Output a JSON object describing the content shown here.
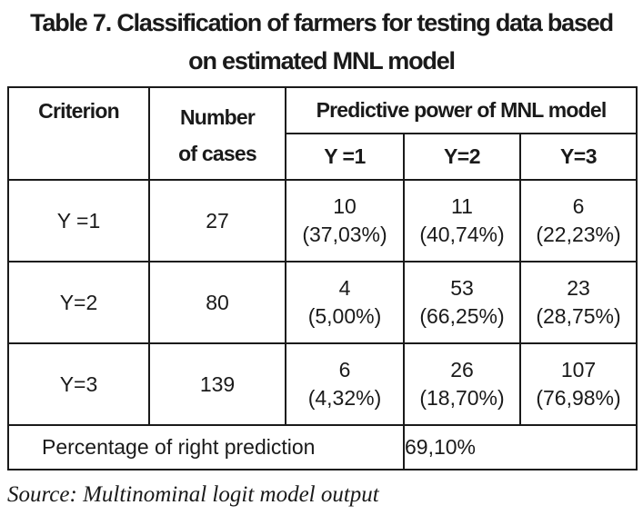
{
  "title": {
    "line1": "Table 7. Classification of farmers for testing data based",
    "line2": "on estimated MNL model"
  },
  "table": {
    "header": {
      "criterion": "Criterion",
      "number_of_cases_line1": "Number",
      "number_of_cases_line2": "of cases",
      "predictive_power": "Predictive power of MNL model",
      "sub_columns": [
        "Y =1",
        "Y=2",
        "Y=3"
      ]
    },
    "rows": [
      {
        "criterion": "Y =1",
        "cases": "27",
        "cells": [
          {
            "count": "10",
            "pct": "(37,03%)"
          },
          {
            "count": "11",
            "pct": "(40,74%)"
          },
          {
            "count": "6",
            "pct": "(22,23%)"
          }
        ]
      },
      {
        "criterion": "Y=2",
        "cases": "80",
        "cells": [
          {
            "count": "4",
            "pct": "(5,00%)"
          },
          {
            "count": "53",
            "pct": "(66,25%)"
          },
          {
            "count": "23",
            "pct": "(28,75%)"
          }
        ]
      },
      {
        "criterion": "Y=3",
        "cases": "139",
        "cells": [
          {
            "count": "6",
            "pct": "(4,32%)"
          },
          {
            "count": "26",
            "pct": "(18,70%)"
          },
          {
            "count": "107",
            "pct": "(76,98%)"
          }
        ]
      }
    ],
    "footer": {
      "label": "Percentage of right prediction",
      "value": "69,10%"
    }
  },
  "source": "Source: Multinominal logit model output"
}
